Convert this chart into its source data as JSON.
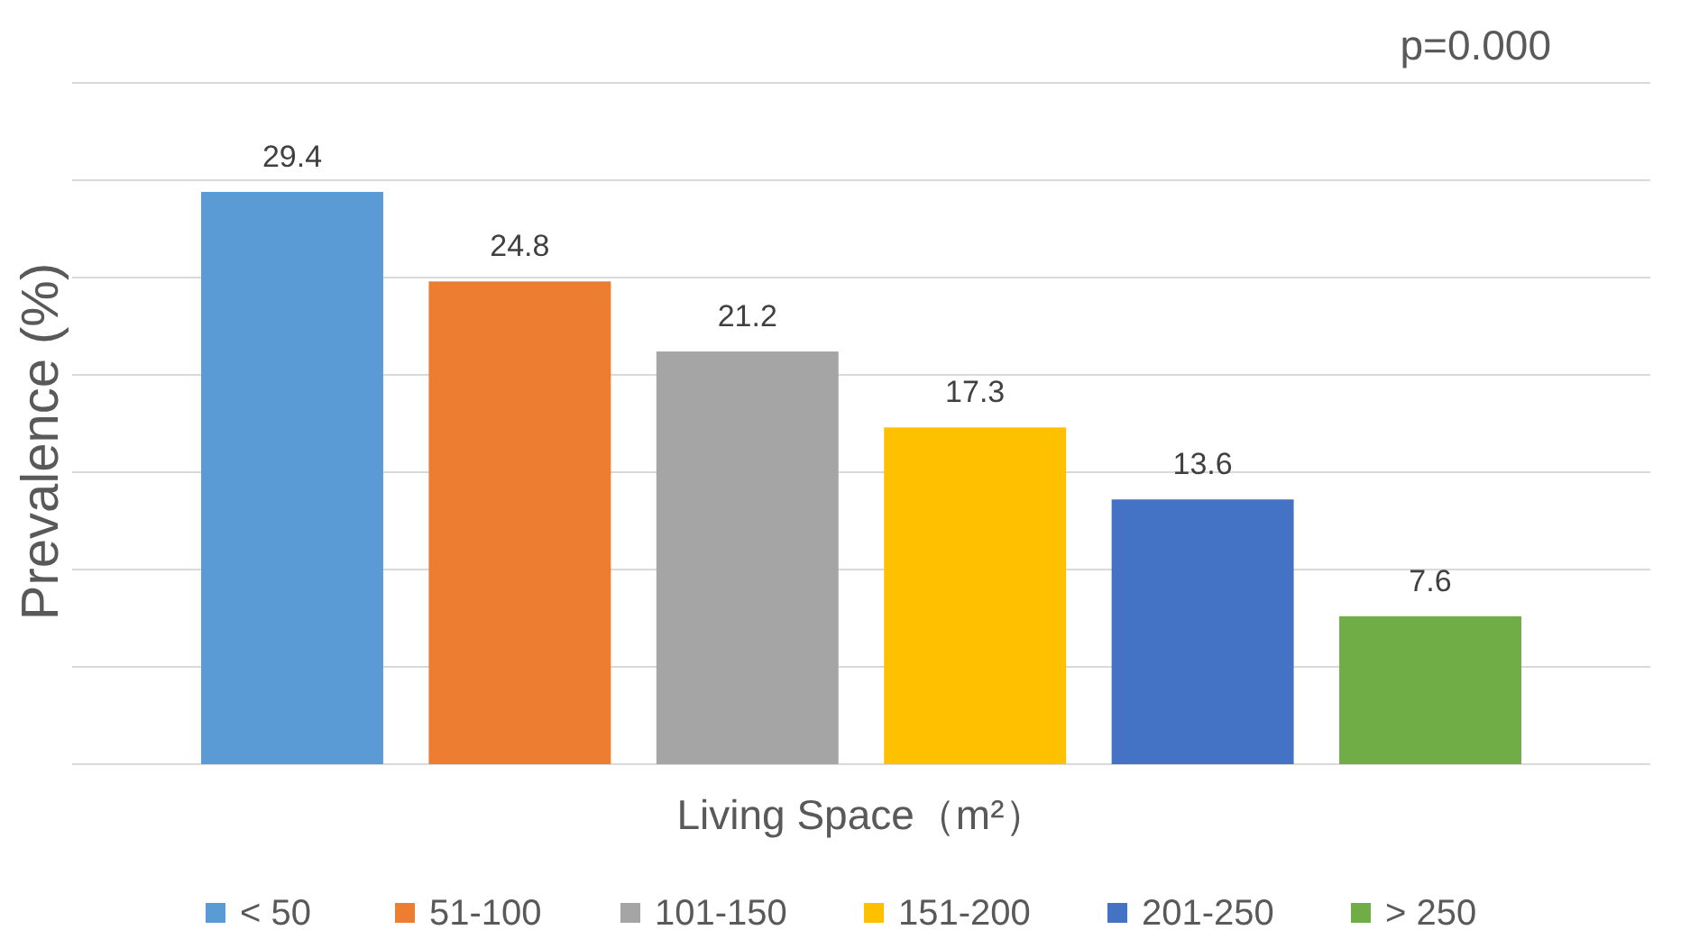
{
  "chart_data": {
    "type": "bar",
    "xlabel": "Living Space（m²）",
    "ylabel": "Prevalence (%)",
    "categories": [
      null
    ],
    "series": [
      {
        "name": "< 50",
        "color": "#5b9bd5",
        "values": [
          29.4
        ]
      },
      {
        "name": "51-100",
        "color": "#ed7d31",
        "values": [
          24.8
        ]
      },
      {
        "name": "101-150",
        "color": "#a5a5a5",
        "values": [
          21.2
        ]
      },
      {
        "name": "151-200",
        "color": "#ffc000",
        "values": [
          17.3
        ]
      },
      {
        "name": "201-250",
        "color": "#4472c4",
        "values": [
          13.6
        ]
      },
      {
        "name": "> 250",
        "color": "#70ad47",
        "values": [
          7.6
        ]
      }
    ],
    "ylim": [
      0,
      35
    ],
    "yticks": [
      {
        "value": 0,
        "label": null
      },
      {
        "value": 5,
        "label": null
      },
      {
        "value": 10,
        "label": null
      },
      {
        "value": 15,
        "label": null
      },
      {
        "value": 20,
        "label": null
      },
      {
        "value": 25,
        "label": null
      },
      {
        "value": 30,
        "label": null
      },
      {
        "value": 35,
        "label": null
      }
    ],
    "grid": "y",
    "data_labels": true,
    "legend": "bottom",
    "annotations": [
      "p=0.000"
    ]
  }
}
